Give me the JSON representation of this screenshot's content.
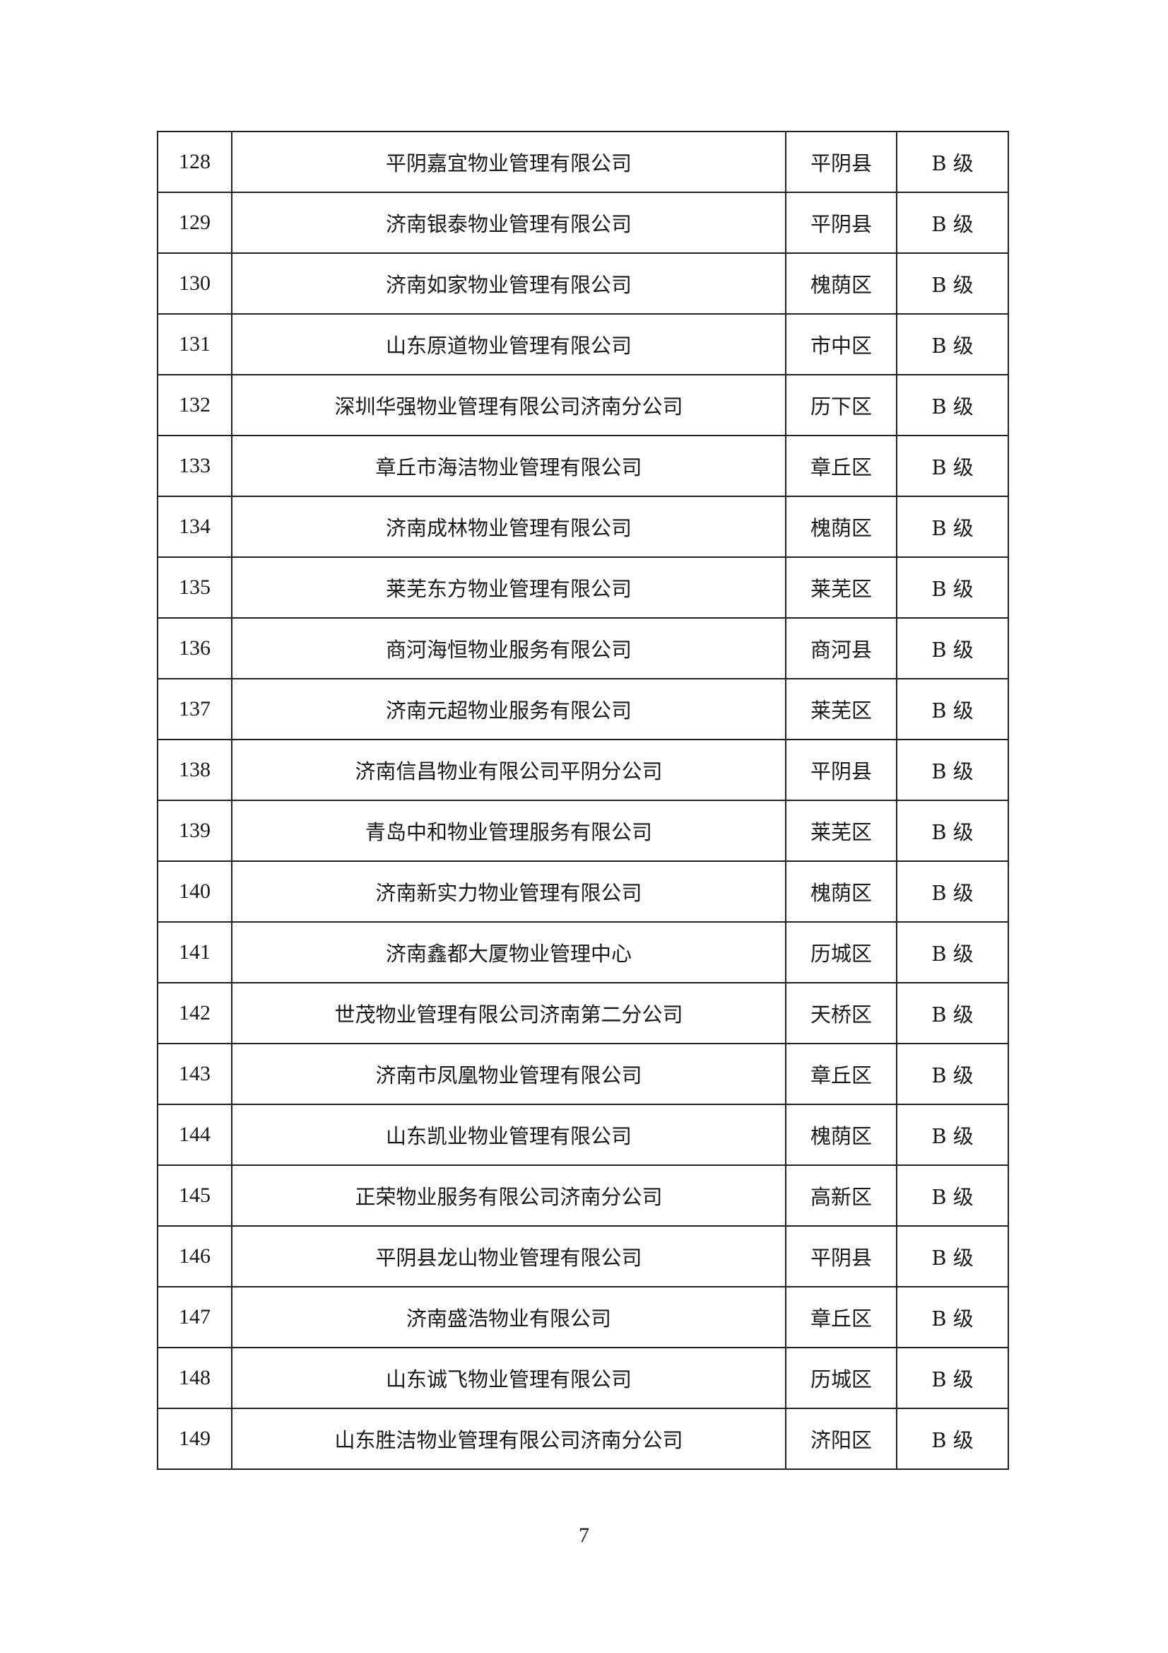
{
  "rows": [
    {
      "no": "128",
      "name": "平阴嘉宜物业管理有限公司",
      "district": "平阴县",
      "grade": "B 级"
    },
    {
      "no": "129",
      "name": "济南银泰物业管理有限公司",
      "district": "平阴县",
      "grade": "B 级"
    },
    {
      "no": "130",
      "name": "济南如家物业管理有限公司",
      "district": "槐荫区",
      "grade": "B 级"
    },
    {
      "no": "131",
      "name": "山东原道物业管理有限公司",
      "district": "市中区",
      "grade": "B 级"
    },
    {
      "no": "132",
      "name": "深圳华强物业管理有限公司济南分公司",
      "district": "历下区",
      "grade": "B 级"
    },
    {
      "no": "133",
      "name": "章丘市海洁物业管理有限公司",
      "district": "章丘区",
      "grade": "B 级"
    },
    {
      "no": "134",
      "name": "济南成林物业管理有限公司",
      "district": "槐荫区",
      "grade": "B 级"
    },
    {
      "no": "135",
      "name": "莱芜东方物业管理有限公司",
      "district": "莱芜区",
      "grade": "B 级"
    },
    {
      "no": "136",
      "name": "商河海恒物业服务有限公司",
      "district": "商河县",
      "grade": "B 级"
    },
    {
      "no": "137",
      "name": "济南元超物业服务有限公司",
      "district": "莱芜区",
      "grade": "B 级"
    },
    {
      "no": "138",
      "name": "济南信昌物业有限公司平阴分公司",
      "district": "平阴县",
      "grade": "B 级"
    },
    {
      "no": "139",
      "name": "青岛中和物业管理服务有限公司",
      "district": "莱芜区",
      "grade": "B 级"
    },
    {
      "no": "140",
      "name": "济南新实力物业管理有限公司",
      "district": "槐荫区",
      "grade": "B 级"
    },
    {
      "no": "141",
      "name": "济南鑫都大厦物业管理中心",
      "district": "历城区",
      "grade": "B 级"
    },
    {
      "no": "142",
      "name": "世茂物业管理有限公司济南第二分公司",
      "district": "天桥区",
      "grade": "B 级"
    },
    {
      "no": "143",
      "name": "济南市凤凰物业管理有限公司",
      "district": "章丘区",
      "grade": "B 级"
    },
    {
      "no": "144",
      "name": "山东凯业物业管理有限公司",
      "district": "槐荫区",
      "grade": "B 级"
    },
    {
      "no": "145",
      "name": "正荣物业服务有限公司济南分公司",
      "district": "高新区",
      "grade": "B 级"
    },
    {
      "no": "146",
      "name": "平阴县龙山物业管理有限公司",
      "district": "平阴县",
      "grade": "B 级"
    },
    {
      "no": "147",
      "name": "济南盛浩物业有限公司",
      "district": "章丘区",
      "grade": "B 级"
    },
    {
      "no": "148",
      "name": "山东诚飞物业管理有限公司",
      "district": "历城区",
      "grade": "B 级"
    },
    {
      "no": "149",
      "name": "山东胜洁物业管理有限公司济南分公司",
      "district": "济阳区",
      "grade": "B 级"
    }
  ],
  "page_number": "7"
}
